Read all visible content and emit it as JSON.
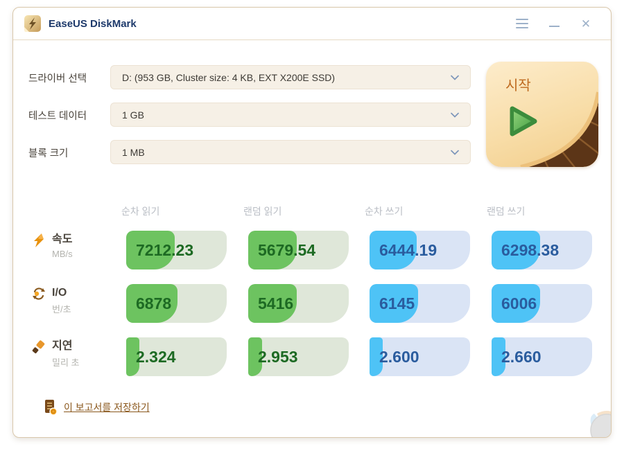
{
  "window": {
    "title": "EaseUS DiskMark"
  },
  "titlebar_icons": [
    "app-logo-icon",
    "menu-icon",
    "minimize-icon",
    "close-icon"
  ],
  "form": {
    "rows": [
      {
        "label": "드라이버 선택",
        "value": "D: (953 GB, Cluster size: 4 KB, EXT X200E SSD)"
      },
      {
        "label": "테스트 데이터",
        "value": "1 GB"
      },
      {
        "label": "블록 크기",
        "value": "1 MB"
      }
    ]
  },
  "start_button": {
    "label": "시작",
    "icon": "play-icon"
  },
  "results": {
    "columns": [
      "순차 읽기",
      "랜덤 읽기",
      "순차 쓰기",
      "랜덤 쓰기"
    ],
    "rows": [
      {
        "name": "속도",
        "unit": "MB/s",
        "icon": "speed-bolt-icon",
        "values": [
          "7212.23",
          "5679.54",
          "6444.19",
          "6298.38"
        ],
        "fill_pct": [
          48,
          48,
          47,
          48
        ]
      },
      {
        "name": "I/O",
        "unit": "번/초",
        "icon": "io-sync-icon",
        "values": [
          "6878",
          "5416",
          "6145",
          "6006"
        ],
        "fill_pct": [
          51,
          48,
          48,
          48
        ]
      },
      {
        "name": "지연",
        "unit": "밀리 초",
        "icon": "latency-brush-icon",
        "values": [
          "2.324",
          "2.953",
          "2.600",
          "2.660"
        ],
        "fill_pct": [
          13,
          14,
          13,
          14
        ]
      }
    ],
    "column_colors": [
      "green",
      "green",
      "blue",
      "blue"
    ]
  },
  "footer": {
    "save_link": "이 보고서를 저장하기",
    "icon": "save-report-icon"
  },
  "colors": {
    "read_fill": "#6dc360",
    "read_track": "#dfe7d9",
    "read_text": "#1d6a23",
    "write_fill": "#4ec3f6",
    "write_track": "#dae4f5",
    "write_text": "#2a5c9e",
    "title_navy": "#1e3a6b",
    "window_border": "#d9c7ab",
    "start_face": "#f8dda8",
    "start_text": "#bf6a1f",
    "link_brown": "#8a571c"
  }
}
